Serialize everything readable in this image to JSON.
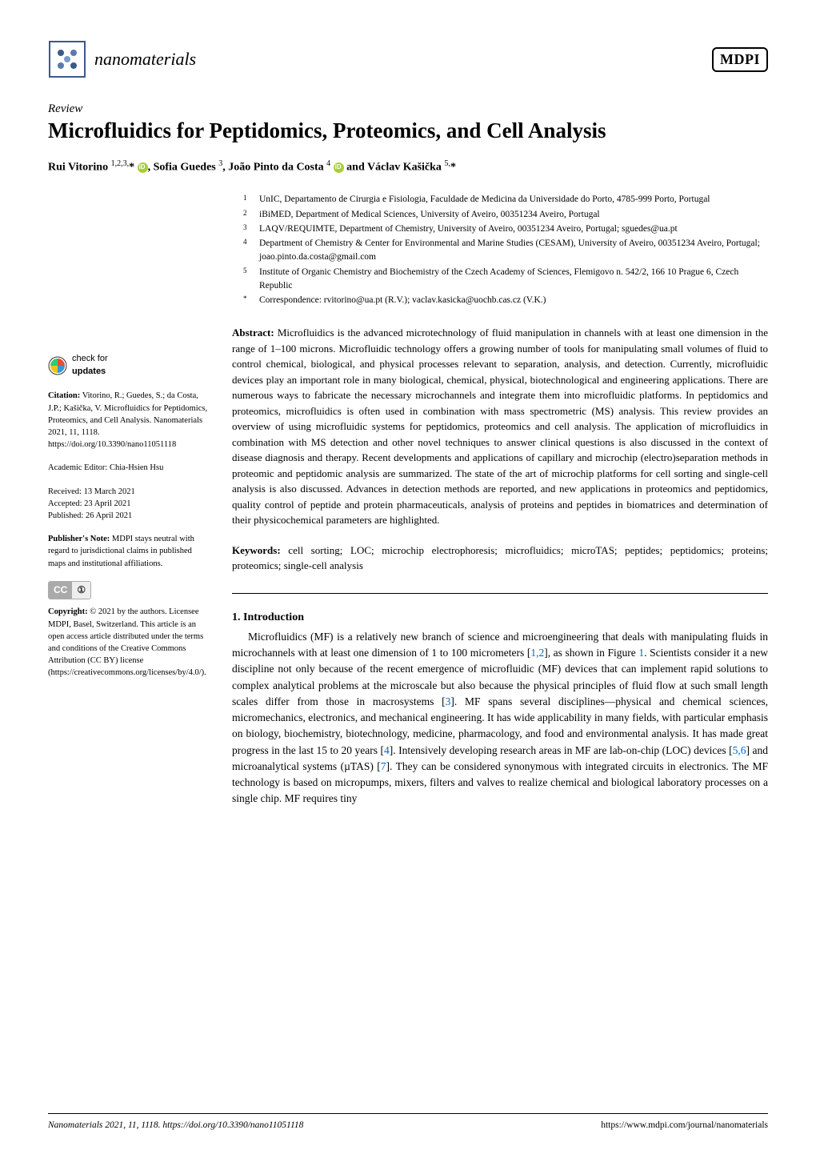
{
  "journal": {
    "name": "nanomaterials",
    "publisher": "MDPI"
  },
  "article": {
    "type": "Review",
    "title": "Microfluidics for Peptidomics, Proteomics, and Cell Analysis",
    "authors_html": "Rui Vitorino <sup>1,2,3,</sup>* , Sofia Guedes <sup>3</sup>, João Pinto da Costa <sup>4</sup>  and Václav Kašička <sup>5,</sup>*"
  },
  "affiliations": [
    {
      "num": "1",
      "text": "UnIC, Departamento de Cirurgia e Fisiologia, Faculdade de Medicina da Universidade do Porto, 4785-999 Porto, Portugal"
    },
    {
      "num": "2",
      "text": "iBiMED, Department of Medical Sciences, University of Aveiro, 00351234 Aveiro, Portugal"
    },
    {
      "num": "3",
      "text": "LAQV/REQUIMTE, Department of Chemistry, University of Aveiro, 00351234 Aveiro, Portugal; sguedes@ua.pt"
    },
    {
      "num": "4",
      "text": "Department of Chemistry & Center for Environmental and Marine Studies (CESAM), University of Aveiro, 00351234 Aveiro, Portugal; joao.pinto.da.costa@gmail.com"
    },
    {
      "num": "5",
      "text": "Institute of Organic Chemistry and Biochemistry of the Czech Academy of Sciences, Flemigovo n. 542/2, 166 10 Prague 6, Czech Republic"
    },
    {
      "num": "*",
      "text": "Correspondence: rvitorino@ua.pt (R.V.); vaclav.kasicka@uochb.cas.cz (V.K.)"
    }
  ],
  "abstract": {
    "label": "Abstract:",
    "text": "Microfluidics is the advanced microtechnology of fluid manipulation in channels with at least one dimension in the range of 1–100 microns. Microfluidic technology offers a growing number of tools for manipulating small volumes of fluid to control chemical, biological, and physical processes relevant to separation, analysis, and detection. Currently, microfluidic devices play an important role in many biological, chemical, physical, biotechnological and engineering applications. There are numerous ways to fabricate the necessary microchannels and integrate them into microfluidic platforms. In peptidomics and proteomics, microfluidics is often used in combination with mass spectrometric (MS) analysis. This review provides an overview of using microfluidic systems for peptidomics, proteomics and cell analysis. The application of microfluidics in combination with MS detection and other novel techniques to answer clinical questions is also discussed in the context of disease diagnosis and therapy. Recent developments and applications of capillary and microchip (electro)separation methods in proteomic and peptidomic analysis are summarized. The state of the art of microchip platforms for cell sorting and single-cell analysis is also discussed. Advances in detection methods are reported, and new applications in proteomics and peptidomics, quality control of peptide and protein pharmaceuticals, analysis of proteins and peptides in biomatrices and determination of their physicochemical parameters are highlighted."
  },
  "keywords": {
    "label": "Keywords:",
    "text": "cell sorting; LOC; microchip electrophoresis; microfluidics; microTAS; peptides; peptidomics; proteins; proteomics; single-cell analysis"
  },
  "section1": {
    "heading": "1. Introduction",
    "body_parts": [
      "Microfluidics (MF) is a relatively new branch of science and microengineering that deals with manipulating fluids in microchannels with at least one dimension of 1 to 100 micrometers [",
      "], as shown in Figure ",
      ". Scientists consider it a new discipline not only because of the recent emergence of microfluidic (MF) devices that can implement rapid solutions to complex analytical problems at the microscale but also because the physical principles of fluid flow at such small length scales differ from those in macrosystems [",
      "]. MF spans several disciplines—physical and chemical sciences, micromechanics, electronics, and mechanical engineering. It has wide applicability in many fields, with particular emphasis on biology, biochemistry, biotechnology, medicine, pharmacology, and food and environmental analysis. It has made great progress in the last 15 to 20 years [",
      "]. Intensively developing research areas in MF are lab-on-chip (LOC) devices [",
      "] and microanalytical systems (µTAS) [",
      "]. They can be considered synonymous with integrated circuits in electronics. The MF technology is based on micropumps, mixers, filters and valves to realize chemical and biological laboratory processes on a single chip. MF requires tiny"
    ],
    "refs": {
      "r12": "1,2",
      "fig1": "1",
      "r3": "3",
      "r4": "4",
      "r56": "5,6",
      "r7": "7"
    }
  },
  "sidebar": {
    "check_updates": "check for updates",
    "citation_label": "Citation:",
    "citation": "Vitorino, R.; Guedes, S.; da Costa, J.P.; Kašička, V. Microfluidics for Peptidomics, Proteomics, and Cell Analysis. Nanomaterials 2021, 11, 1118. https://doi.org/10.3390/nano11051118",
    "editor": "Academic Editor: Chia-Hsien Hsu",
    "received": "Received: 13 March 2021",
    "accepted": "Accepted: 23 April 2021",
    "published": "Published: 26 April 2021",
    "pubnote_label": "Publisher's Note:",
    "pubnote": "MDPI stays neutral with regard to jurisdictional claims in published maps and institutional affiliations.",
    "copyright_label": "Copyright:",
    "copyright": "© 2021 by the authors. Licensee MDPI, Basel, Switzerland. This article is an open access article distributed under the terms and conditions of the Creative Commons Attribution (CC BY) license (https://creativecommons.org/licenses/by/4.0/)."
  },
  "footer": {
    "left": "Nanomaterials 2021, 11, 1118. https://doi.org/10.3390/nano11051118",
    "right": "https://www.mdpi.com/journal/nanomaterials"
  },
  "colors": {
    "link": "#0066cc",
    "orcid": "#a6ce39",
    "text": "#000000",
    "bg": "#ffffff"
  }
}
